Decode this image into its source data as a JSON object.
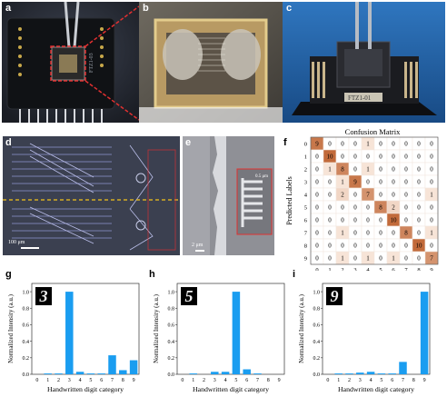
{
  "panels": {
    "a": {
      "label": "a",
      "chip_text": "FTZ1-03"
    },
    "b": {
      "label": "b"
    },
    "c": {
      "label": "c",
      "chip_text": "FTZ1-01"
    },
    "d": {
      "label": "d",
      "scalebar": "100 μm"
    },
    "e": {
      "label": "e",
      "scalebar": "2 μm",
      "inset_scalebar": "0.5 μm"
    },
    "f": {
      "label": "f"
    },
    "g": {
      "label": "g",
      "digit": "3"
    },
    "h": {
      "label": "h",
      "digit": "5"
    },
    "i": {
      "label": "i",
      "digit": "9"
    }
  },
  "colors": {
    "bar": "#1a9df0",
    "matrix_low": "#fdf1e8",
    "matrix_high": "#c26a3a",
    "photo_board": "#15171a",
    "photo_bg_blue": "#1e63a8",
    "microscope_bg": "#3a3f4a",
    "dashed_yellow": "#f2c21b",
    "annotation_red": "#e03030"
  },
  "chart_data": [
    {
      "type": "heatmap",
      "title": "Confusion Matrix",
      "xlabel": "True Labels",
      "ylabel": "Predicted Labels",
      "x_ticks": [
        "0",
        "1",
        "2",
        "3",
        "4",
        "5",
        "6",
        "7",
        "8",
        "9"
      ],
      "y_ticks": [
        "0",
        "1",
        "2",
        "3",
        "4",
        "5",
        "6",
        "7",
        "8",
        "9"
      ],
      "values": [
        [
          9,
          0,
          0,
          0,
          1,
          0,
          0,
          0,
          0,
          0
        ],
        [
          0,
          10,
          0,
          0,
          0,
          0,
          0,
          0,
          0,
          0
        ],
        [
          0,
          1,
          8,
          0,
          1,
          0,
          0,
          0,
          0,
          0
        ],
        [
          0,
          0,
          1,
          9,
          0,
          0,
          0,
          0,
          0,
          0
        ],
        [
          0,
          0,
          2,
          0,
          7,
          0,
          0,
          0,
          0,
          1
        ],
        [
          0,
          0,
          0,
          0,
          0,
          8,
          2,
          0,
          0,
          0
        ],
        [
          0,
          0,
          0,
          0,
          0,
          0,
          10,
          0,
          0,
          0
        ],
        [
          0,
          0,
          1,
          0,
          0,
          0,
          0,
          8,
          0,
          1
        ],
        [
          0,
          0,
          0,
          0,
          0,
          0,
          0,
          0,
          10,
          0
        ],
        [
          0,
          0,
          1,
          0,
          1,
          0,
          1,
          0,
          0,
          7
        ]
      ]
    },
    {
      "type": "bar",
      "panel": "g",
      "categories": [
        "0",
        "1",
        "2",
        "3",
        "4",
        "5",
        "6",
        "7",
        "8",
        "9"
      ],
      "values": [
        0.0,
        0.01,
        0.01,
        1.0,
        0.03,
        0.01,
        0.01,
        0.23,
        0.05,
        0.17
      ],
      "xlabel": "Handwritten digit category",
      "ylabel": "Normalized Intensity (a.u.)",
      "yticks": [
        "0.0",
        "0.2",
        "0.4",
        "0.6",
        "0.8",
        "1.0"
      ],
      "ylim": [
        0,
        1.1
      ]
    },
    {
      "type": "bar",
      "panel": "h",
      "categories": [
        "0",
        "1",
        "2",
        "3",
        "4",
        "5",
        "6",
        "7",
        "8",
        "9"
      ],
      "values": [
        0.0,
        0.01,
        0.0,
        0.03,
        0.03,
        1.0,
        0.06,
        0.01,
        0.0,
        0.0
      ],
      "xlabel": "Handwritten digit category",
      "ylabel": "Normalized Intensity (a.u.)",
      "yticks": [
        "0.0",
        "0.2",
        "0.4",
        "0.6",
        "0.8",
        "1.0"
      ],
      "ylim": [
        0,
        1.1
      ]
    },
    {
      "type": "bar",
      "panel": "i",
      "categories": [
        "0",
        "1",
        "2",
        "3",
        "4",
        "5",
        "6",
        "7",
        "8",
        "9"
      ],
      "values": [
        0.0,
        0.01,
        0.01,
        0.02,
        0.03,
        0.01,
        0.01,
        0.15,
        0.0,
        1.0
      ],
      "xlabel": "Handwritten digit category",
      "ylabel": "Normalized Intensity (a.u.)",
      "yticks": [
        "0.0",
        "0.2",
        "0.4",
        "0.6",
        "0.8",
        "1.0"
      ],
      "ylim": [
        0,
        1.1
      ]
    }
  ]
}
